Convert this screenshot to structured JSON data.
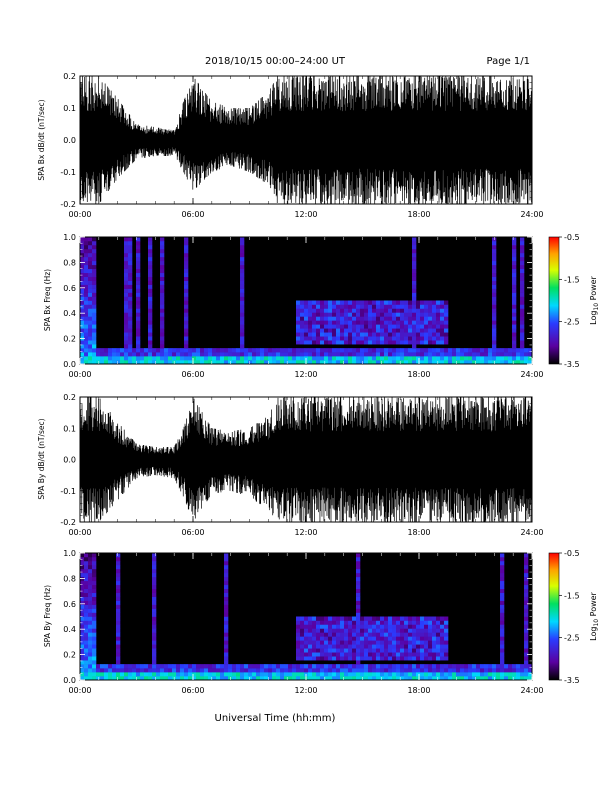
{
  "header": {
    "title": "2018/10/15  00:00–24:00 UT",
    "page": "Page 1/1"
  },
  "x_axis": {
    "label": "Universal Time (hh:mm)",
    "ticks": [
      "00:00",
      "06:00",
      "12:00",
      "18:00",
      "24:00"
    ]
  },
  "colorbar": {
    "label": "Log10 Power",
    "label_main": "Log",
    "label_sub": "10",
    "label_rest": " Power",
    "ticks": [
      "-0.5",
      "-1.5",
      "-2.5",
      "-3.5"
    ],
    "colors": [
      "#000000",
      "#5a00a0",
      "#2a3cff",
      "#00d8ff",
      "#00e060",
      "#d8ff00",
      "#ffa000",
      "#ff0000"
    ]
  },
  "chart_data": [
    {
      "type": "line",
      "name": "bx-waveform",
      "ylabel": "SPA Bx dB/dt (nT/sec)",
      "xlim": [
        0,
        24
      ],
      "ylim": [
        -0.2,
        0.2
      ],
      "yticks": [
        "0.2",
        "0.1",
        "0.0",
        "-0.1",
        "-0.2"
      ],
      "envelope": {
        "x": [
          0,
          0.3,
          0.7,
          1.0,
          2.0,
          3.0,
          4.0,
          5.0,
          5.5,
          6.0,
          7.0,
          8.0,
          9.0,
          10.0,
          10.5,
          11.0,
          12.0,
          13.0,
          14.0,
          15.0,
          16.0,
          17.0,
          18.0,
          19.0,
          20.0,
          21.0,
          22.0,
          23.0,
          24.0
        ],
        "upper": [
          0.2,
          0.2,
          0.2,
          0.2,
          0.13,
          0.05,
          0.04,
          0.03,
          0.12,
          0.2,
          0.12,
          0.1,
          0.1,
          0.15,
          0.2,
          0.2,
          0.2,
          0.2,
          0.2,
          0.2,
          0.2,
          0.2,
          0.2,
          0.2,
          0.2,
          0.2,
          0.2,
          0.2,
          0.2
        ],
        "lower": [
          -0.2,
          -0.2,
          -0.2,
          -0.2,
          -0.12,
          -0.06,
          -0.05,
          -0.05,
          -0.1,
          -0.16,
          -0.1,
          -0.08,
          -0.1,
          -0.14,
          -0.2,
          -0.2,
          -0.2,
          -0.2,
          -0.2,
          -0.2,
          -0.2,
          -0.2,
          -0.2,
          -0.2,
          -0.2,
          -0.2,
          -0.2,
          -0.2,
          -0.2
        ]
      }
    },
    {
      "type": "heatmap",
      "name": "bx-spectrogram",
      "ylabel": "SPA Bx Freq (Hz)",
      "xlim": [
        0,
        24
      ],
      "ylim": [
        0,
        1.0
      ],
      "yticks": [
        "1.0",
        "0.8",
        "0.6",
        "0.4",
        "0.2",
        "0.0"
      ],
      "zlim": [
        -3.5,
        -0.5
      ],
      "features": {
        "burst_hours": [
          0.35,
          0.45,
          0.55
        ],
        "enhanced_band": {
          "x": [
            11.5,
            19.5
          ],
          "y": [
            0.15,
            0.5
          ],
          "level": -2.6
        },
        "low_freq_floor_level": -2.2
      }
    },
    {
      "type": "line",
      "name": "by-waveform",
      "ylabel": "SPA By dB/dt (nT/sec)",
      "xlim": [
        0,
        24
      ],
      "ylim": [
        -0.2,
        0.2
      ],
      "yticks": [
        "0.2",
        "0.1",
        "0.0",
        "-0.1",
        "-0.2"
      ],
      "envelope": {
        "x": [
          0,
          0.3,
          0.7,
          1.0,
          2.0,
          3.0,
          4.0,
          5.0,
          5.5,
          6.0,
          7.0,
          8.0,
          9.0,
          10.0,
          10.5,
          11.0,
          12.0,
          13.0,
          14.0,
          15.0,
          16.0,
          17.0,
          18.0,
          19.0,
          20.0,
          21.0,
          22.0,
          23.0,
          24.0
        ],
        "upper": [
          0.2,
          0.2,
          0.2,
          0.2,
          0.12,
          0.05,
          0.04,
          0.04,
          0.1,
          0.2,
          0.1,
          0.09,
          0.1,
          0.14,
          0.2,
          0.2,
          0.2,
          0.2,
          0.2,
          0.2,
          0.2,
          0.2,
          0.2,
          0.2,
          0.2,
          0.2,
          0.2,
          0.2,
          0.2
        ],
        "lower": [
          -0.2,
          -0.2,
          -0.2,
          -0.2,
          -0.13,
          -0.06,
          -0.05,
          -0.06,
          -0.12,
          -0.2,
          -0.11,
          -0.1,
          -0.12,
          -0.16,
          -0.2,
          -0.2,
          -0.2,
          -0.2,
          -0.2,
          -0.2,
          -0.2,
          -0.2,
          -0.2,
          -0.2,
          -0.2,
          -0.2,
          -0.2,
          -0.2,
          -0.2
        ]
      }
    },
    {
      "type": "heatmap",
      "name": "by-spectrogram",
      "ylabel": "SPA By Freq (Hz)",
      "xlim": [
        0,
        24
      ],
      "ylim": [
        0,
        1.0
      ],
      "yticks": [
        "1.0",
        "0.8",
        "0.6",
        "0.4",
        "0.2",
        "0.0"
      ],
      "zlim": [
        -3.5,
        -0.5
      ],
      "features": {
        "burst_hours": [
          0.35,
          0.45,
          0.55
        ],
        "enhanced_band": {
          "x": [
            11.5,
            19.5
          ],
          "y": [
            0.15,
            0.5
          ],
          "level": -2.6
        },
        "low_freq_floor_level": -2.2
      }
    }
  ]
}
